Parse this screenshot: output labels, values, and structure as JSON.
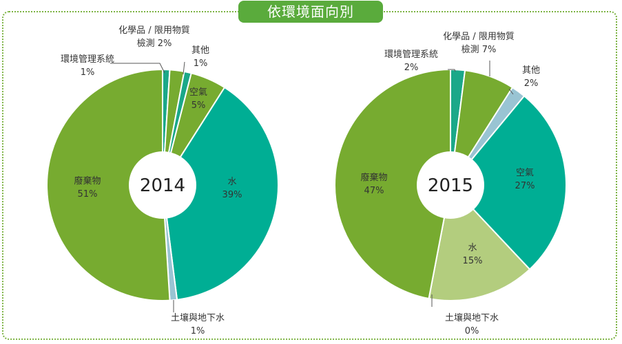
{
  "page": {
    "title": "依環境面向別"
  },
  "chart_data": [
    {
      "type": "pie",
      "center_label": "2014",
      "slices": [
        {
          "label": "環境管理系統",
          "percent_label": "1%",
          "value": 1,
          "color": "#1ba889"
        },
        {
          "label": "化學品 / 限用物質檢測",
          "label_lines": [
            "化學品 / 限用物質",
            "檢測 2%"
          ],
          "percent_label": "2%",
          "value": 2,
          "color": "#77ab30"
        },
        {
          "label": "其他",
          "percent_label": "1%",
          "value": 1,
          "color": "#1ba889"
        },
        {
          "label": "空氣",
          "percent_label": "5%",
          "value": 5,
          "color": "#77ab30"
        },
        {
          "label": "水",
          "percent_label": "39%",
          "value": 39,
          "color": "#00ae94"
        },
        {
          "label": "土壤與地下水",
          "percent_label": "1%",
          "value": 1,
          "color": "#99c4d3"
        },
        {
          "label": "廢棄物",
          "percent_label": "51%",
          "value": 51,
          "color": "#77ab30"
        }
      ]
    },
    {
      "type": "pie",
      "center_label": "2015",
      "slices": [
        {
          "label": "環境管理系統",
          "percent_label": "2%",
          "value": 2,
          "color": "#1ba889"
        },
        {
          "label": "化學品 / 限用物質檢測",
          "label_lines": [
            "化學品 / 限用物質",
            "檢測 7%"
          ],
          "percent_label": "7%",
          "value": 7,
          "color": "#77ab30"
        },
        {
          "label": "其他",
          "percent_label": "2%",
          "value": 2,
          "color": "#99c4d3"
        },
        {
          "label": "空氣",
          "percent_label": "27%",
          "value": 27,
          "color": "#00ae94"
        },
        {
          "label": "水",
          "percent_label": "15%",
          "value": 15,
          "color": "#b3cd7e"
        },
        {
          "label": "土壤與地下水",
          "percent_label": "0%",
          "value": 0,
          "color": "#99c4d3"
        },
        {
          "label": "廢棄物",
          "percent_label": "47%",
          "value": 47,
          "color": "#77ab30"
        }
      ]
    }
  ]
}
